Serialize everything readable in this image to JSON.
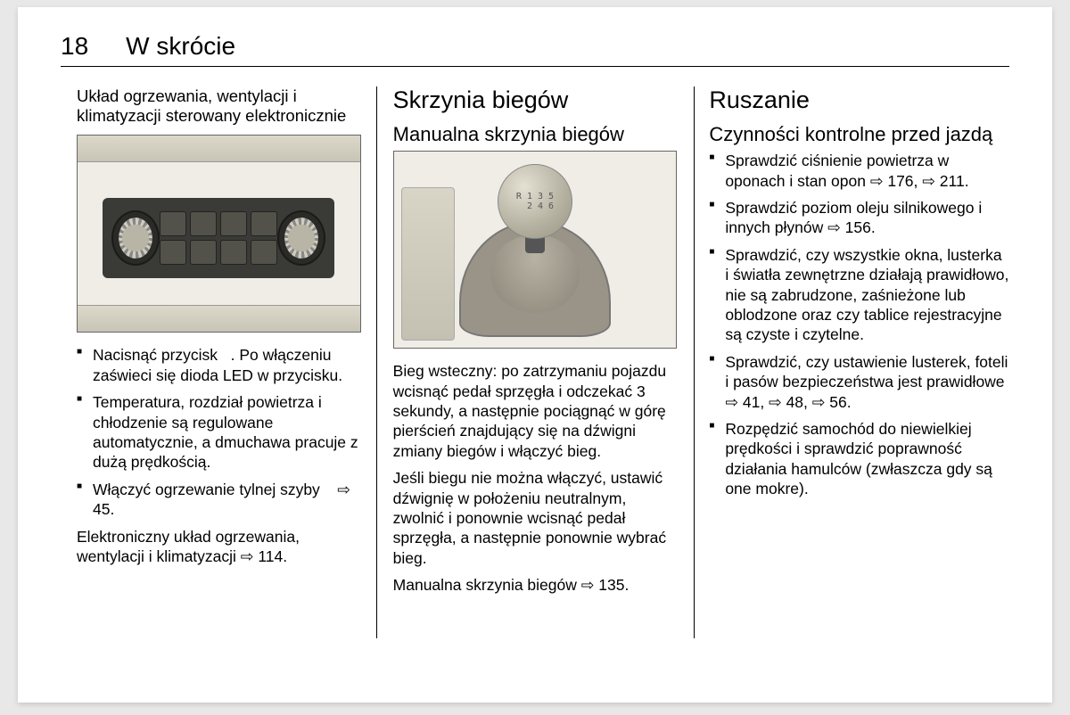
{
  "page_number": "18",
  "chapter_title": "W skrócie",
  "col1": {
    "heading": "Układ ogrzewania, wentylacji i klimatyzacji sterowany elektronicznie",
    "items": [
      "Nacisnąć przycisk   . Po włączeniu zaświeci się dioda LED w przycisku.",
      "Temperatura, rozdział powietrza i chłodzenie są regulowane automatycznie, a dmuchawa pracuje z dużą prędkością.",
      "Włączyć ogrzewanie tylnej szyby    ⇨ 45."
    ],
    "footer": "Elektroniczny układ ogrzewania, wentylacji i klimatyzacji ⇨ 114."
  },
  "col2": {
    "title": "Skrzynia biegów",
    "subtitle": "Manualna skrzynia biegów",
    "knob_pattern": "R 1 3 5\n  2 4 6",
    "para1": "Bieg wsteczny: po zatrzymaniu pojazdu wcisnąć pedał sprzęgła i odczekać 3 sekundy, a następnie pociągnąć w górę pierścień znajdujący się na dźwigni zmiany biegów i włączyć bieg.",
    "para2": "Jeśli biegu nie można włączyć, ustawić dźwignię w położeniu neutralnym, zwolnić i ponownie wcisnąć pedał sprzęgła, a następnie ponownie wybrać bieg.",
    "para3": "Manualna skrzynia biegów ⇨ 135."
  },
  "col3": {
    "title": "Ruszanie",
    "subtitle": "Czynności kontrolne przed jazdą",
    "items": [
      "Sprawdzić ciśnienie powietrza w oponach i stan opon ⇨ 176, ⇨ 211.",
      "Sprawdzić poziom oleju silnikowego i innych płynów ⇨ 156.",
      "Sprawdzić, czy wszystkie okna, lusterka i światła zewnętrzne działają prawidłowo, nie są zabrudzone, zaśnieżone lub oblodzone oraz czy tablice rejestracyjne są czyste i czytelne.",
      "Sprawdzić, czy ustawienie lusterek, foteli i pasów bezpieczeństwa jest prawidłowe ⇨ 41, ⇨ 48, ⇨ 56.",
      "Rozpędzić samochód do niewielkiej prędkości i sprawdzić poprawność działania hamulców (zwłaszcza gdy są one mokre)."
    ]
  }
}
